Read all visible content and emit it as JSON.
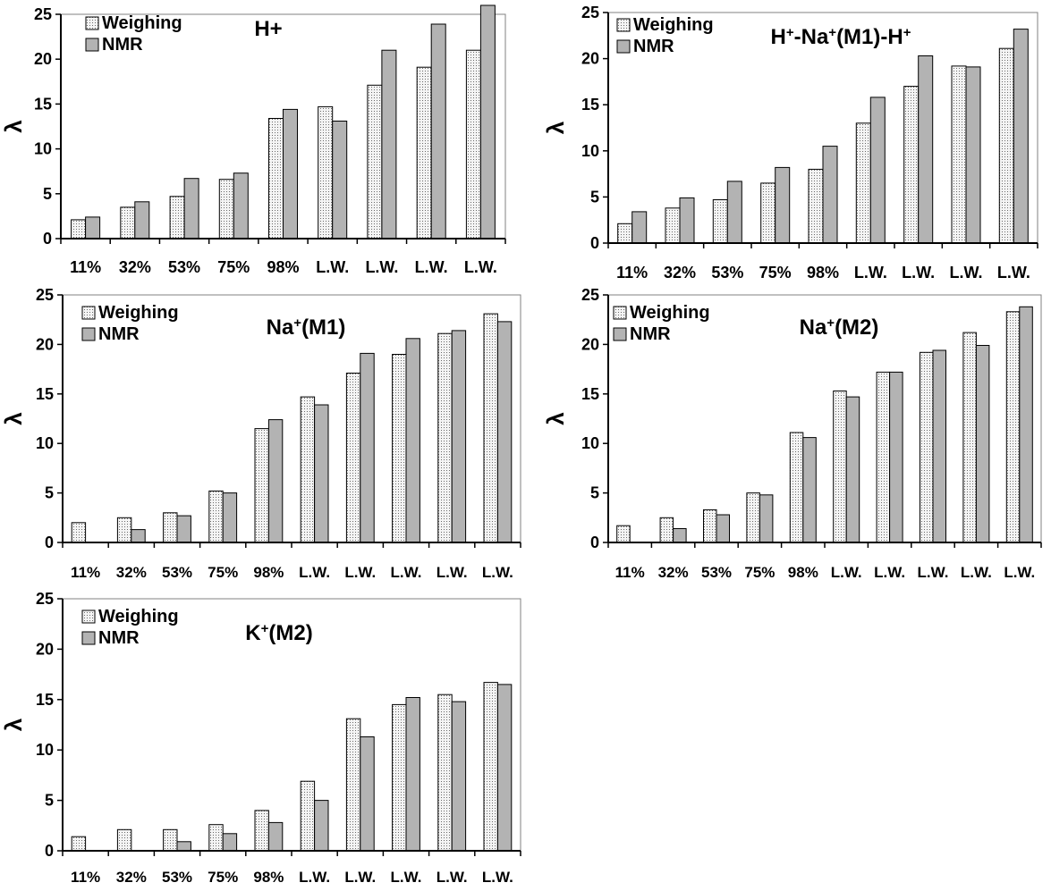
{
  "colors": {
    "weighing_fill": "#f4f4f4",
    "weighing_dots": "#6a6a6a",
    "nmr_fill": "#b3b3b3",
    "axis": "#000000",
    "plot_border": "#808080"
  },
  "ylabel_glyph": "λ",
  "chart_data": [
    {
      "type": "bar",
      "title": "H+",
      "ylabel": "λ",
      "ylim": [
        0,
        25
      ],
      "yticks": [
        0,
        5,
        10,
        15,
        20,
        25
      ],
      "grid": false,
      "legend_position": "top-left",
      "categories": [
        "11%",
        "32%",
        "53%",
        "75%",
        "98%",
        "L.W.",
        "L.W.",
        "L.W.",
        "L.W."
      ],
      "series": [
        {
          "name": "Weighing",
          "values": [
            2.1,
            3.5,
            4.7,
            6.6,
            13.4,
            14.7,
            17.1,
            19.1,
            21.0
          ]
        },
        {
          "name": "NMR",
          "values": [
            2.4,
            4.1,
            6.7,
            7.3,
            14.4,
            13.1,
            21.0,
            23.9,
            26.0
          ]
        }
      ]
    },
    {
      "type": "bar",
      "title": "H⁺-Na⁺(M1)-H⁺",
      "ylabel": "λ",
      "ylim": [
        0,
        25
      ],
      "yticks": [
        0,
        5,
        10,
        15,
        20,
        25
      ],
      "grid": false,
      "legend_position": "top-left",
      "categories": [
        "11%",
        "32%",
        "53%",
        "75%",
        "98%",
        "L.W.",
        "L.W.",
        "L.W.",
        "L.W."
      ],
      "series": [
        {
          "name": "Weighing",
          "values": [
            2.1,
            3.8,
            4.7,
            6.5,
            8.0,
            13.0,
            17.0,
            19.2,
            21.1
          ]
        },
        {
          "name": "NMR",
          "values": [
            3.4,
            4.9,
            6.7,
            8.2,
            10.5,
            15.8,
            20.3,
            19.1,
            23.2
          ]
        }
      ]
    },
    {
      "type": "bar",
      "title": "Na⁺(M1)",
      "ylabel": "λ",
      "ylim": [
        0,
        25
      ],
      "yticks": [
        0,
        5,
        10,
        15,
        20,
        25
      ],
      "grid": false,
      "legend_position": "top-left",
      "categories": [
        "11%",
        "32%",
        "53%",
        "75%",
        "98%",
        "L.W.",
        "L.W.",
        "L.W.",
        "L.W.",
        "L.W."
      ],
      "series": [
        {
          "name": "Weighing",
          "values": [
            2.0,
            2.5,
            3.0,
            5.2,
            11.5,
            14.7,
            17.1,
            19.0,
            21.1,
            23.1
          ]
        },
        {
          "name": "NMR",
          "values": [
            0,
            1.3,
            2.7,
            5.0,
            12.4,
            13.9,
            19.1,
            20.6,
            21.4,
            22.3
          ]
        }
      ]
    },
    {
      "type": "bar",
      "title": "Na⁺(M2)",
      "ylabel": "λ",
      "ylim": [
        0,
        25
      ],
      "yticks": [
        0,
        5,
        10,
        15,
        20,
        25
      ],
      "grid": false,
      "legend_position": "top-left",
      "categories": [
        "11%",
        "32%",
        "53%",
        "75%",
        "98%",
        "L.W.",
        "L.W.",
        "L.W.",
        "L.W.",
        "L.W."
      ],
      "series": [
        {
          "name": "Weighing",
          "values": [
            1.7,
            2.5,
            3.3,
            5.0,
            11.1,
            15.3,
            17.2,
            19.2,
            21.2,
            23.3
          ]
        },
        {
          "name": "NMR",
          "values": [
            0,
            1.4,
            2.8,
            4.8,
            10.6,
            14.7,
            17.2,
            19.4,
            19.9,
            23.8
          ]
        }
      ]
    },
    {
      "type": "bar",
      "title": "K⁺(M2)",
      "ylabel": "λ",
      "ylim": [
        0,
        25
      ],
      "yticks": [
        0,
        5,
        10,
        15,
        20,
        25
      ],
      "grid": false,
      "legend_position": "top-left",
      "categories": [
        "11%",
        "32%",
        "53%",
        "75%",
        "98%",
        "L.W.",
        "L.W.",
        "L.W.",
        "L.W.",
        "L.W."
      ],
      "series": [
        {
          "name": "Weighing",
          "values": [
            1.4,
            2.1,
            2.1,
            2.6,
            4.0,
            6.9,
            13.1,
            14.5,
            15.5,
            16.7
          ]
        },
        {
          "name": "NMR",
          "values": [
            0,
            0,
            0.9,
            1.7,
            2.8,
            5.0,
            11.3,
            15.2,
            14.8,
            16.5
          ]
        }
      ]
    }
  ]
}
